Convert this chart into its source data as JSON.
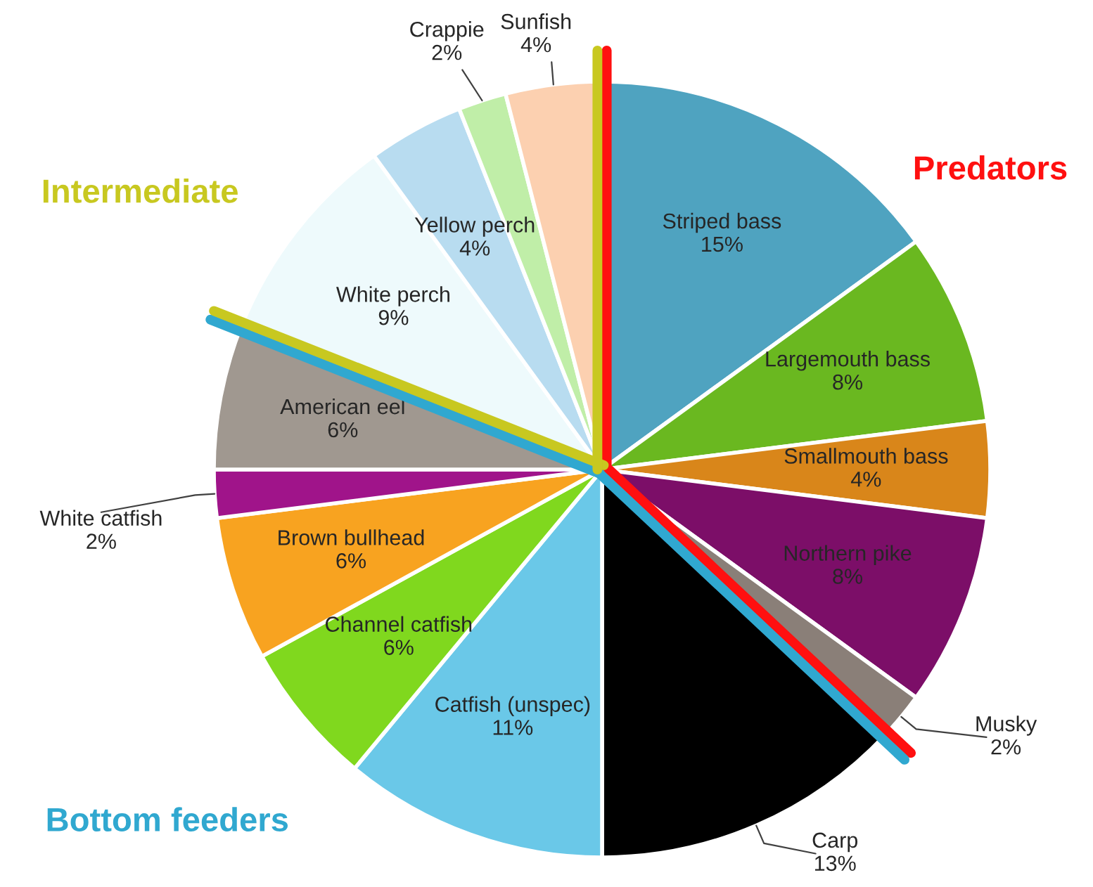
{
  "chart_data": {
    "type": "pie",
    "categories": [
      "Striped bass",
      "Largemouth bass",
      "Smallmouth bass",
      "Northern pike",
      "Musky",
      "Carp",
      "Catfish (unspec)",
      "Channel catfish",
      "Brown bullhead",
      "White catfish",
      "American eel",
      "White perch",
      "Yellow perch",
      "Crappie",
      "Sunfish"
    ],
    "values": [
      15,
      8,
      4,
      8,
      2,
      13,
      11,
      6,
      6,
      2,
      6,
      9,
      4,
      2,
      4
    ],
    "value_labels": [
      "15%",
      "8%",
      "4%",
      "8%",
      "2%",
      "13%",
      "11%",
      "6%",
      "6%",
      "2%",
      "6%",
      "9%",
      "4%",
      "2%",
      "4%"
    ],
    "colors": [
      "#4fa3c0",
      "#6ab820",
      "#d9861a",
      "#7c0e68",
      "#8a7f78",
      "#000000",
      "#6ac8e8",
      "#80d81e",
      "#f8a320",
      "#a0148a",
      "#a09890",
      "#eefafc",
      "#b8dcf0",
      "#c0eea8",
      "#fcd0b0"
    ],
    "annotations": [
      "Predators",
      "Bottom feeders",
      "Intermediate"
    ],
    "legend": false
  }
}
